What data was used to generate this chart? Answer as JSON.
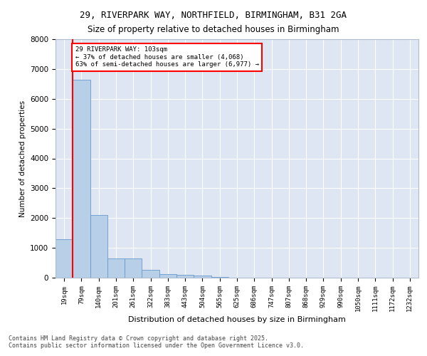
{
  "title_line1": "29, RIVERPARK WAY, NORTHFIELD, BIRMINGHAM, B31 2GA",
  "title_line2": "Size of property relative to detached houses in Birmingham",
  "xlabel": "Distribution of detached houses by size in Birmingham",
  "ylabel": "Number of detached properties",
  "bar_labels": [
    "19sqm",
    "79sqm",
    "140sqm",
    "201sqm",
    "261sqm",
    "322sqm",
    "383sqm",
    "443sqm",
    "504sqm",
    "565sqm",
    "625sqm",
    "686sqm",
    "747sqm",
    "807sqm",
    "868sqm",
    "929sqm",
    "990sqm",
    "1050sqm",
    "1111sqm",
    "1172sqm",
    "1232sqm"
  ],
  "bar_values": [
    1300,
    6650,
    2100,
    650,
    650,
    270,
    130,
    90,
    60,
    30,
    5,
    2,
    1,
    1,
    0,
    0,
    0,
    0,
    0,
    0,
    0
  ],
  "bar_color": "#b8cfe8",
  "bar_edge_color": "#6699cc",
  "vline_x": 0.5,
  "vline_color": "red",
  "annotation_text": "29 RIVERPARK WAY: 103sqm\n← 37% of detached houses are smaller (4,068)\n63% of semi-detached houses are larger (6,977) →",
  "annotation_box_color": "red",
  "ylim": [
    0,
    8000
  ],
  "yticks": [
    0,
    1000,
    2000,
    3000,
    4000,
    5000,
    6000,
    7000,
    8000
  ],
  "background_color": "#dde6f2",
  "grid_color": "white",
  "footer_line1": "Contains HM Land Registry data © Crown copyright and database right 2025.",
  "footer_line2": "Contains public sector information licensed under the Open Government Licence v3.0."
}
